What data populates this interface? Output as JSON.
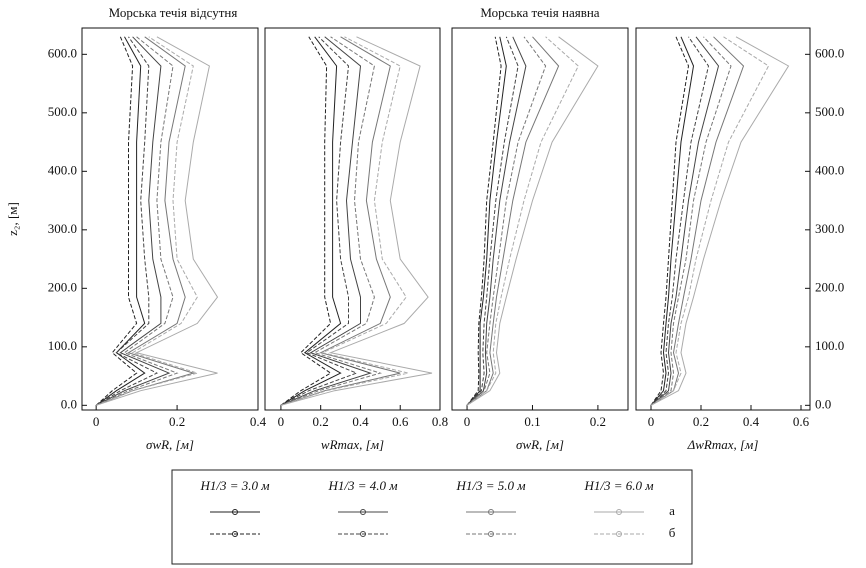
{
  "group_titles": [
    "Морська течія відсутня",
    "Морська течія наявна"
  ],
  "legend": {
    "columns": [
      "H1/3 = 3.0 м",
      "H1/3 = 4.0 м",
      "H1/3 = 5.0 м",
      "H1/3 = 6.0 м"
    ],
    "rows": [
      "а",
      "б"
    ]
  },
  "chart_data": [
    {
      "type": "line",
      "ylabel": "z₂, [м]",
      "xlabel": "σwR, [м]",
      "xlim": [
        -0.035,
        0.4
      ],
      "xticks": [
        0,
        0.2,
        0.4
      ],
      "ylim": [
        -8,
        645
      ],
      "yticks": [
        {
          "value": 0,
          "label": "0.0"
        },
        {
          "value": 100,
          "label": "100.0"
        },
        {
          "value": 200,
          "label": "200.0"
        },
        {
          "value": 300,
          "label": "300.0"
        },
        {
          "value": 400,
          "label": "400.0"
        },
        {
          "value": 500,
          "label": "500.0"
        },
        {
          "value": 600,
          "label": "600.0"
        }
      ],
      "y": [
        0,
        25,
        55,
        90,
        140,
        185,
        250,
        350,
        450,
        580,
        630
      ],
      "series": [
        {
          "color": "#222",
          "values": [
            0,
            0.05,
            0.12,
            0.05,
            0.12,
            0.1,
            0.1,
            0.1,
            0.1,
            0.11,
            0.07
          ]
        },
        {
          "color": "#444",
          "values": [
            0,
            0.07,
            0.18,
            0.06,
            0.16,
            0.16,
            0.14,
            0.13,
            0.14,
            0.16,
            0.09
          ]
        },
        {
          "color": "#777",
          "values": [
            0,
            0.09,
            0.24,
            0.08,
            0.2,
            0.22,
            0.19,
            0.17,
            0.18,
            0.22,
            0.12
          ]
        },
        {
          "color": "#aaa",
          "values": [
            0,
            0.11,
            0.3,
            0.1,
            0.25,
            0.3,
            0.24,
            0.22,
            0.24,
            0.28,
            0.15
          ]
        },
        {
          "color": "#222",
          "dash": true,
          "values": [
            0,
            0.04,
            0.1,
            0.04,
            0.1,
            0.08,
            0.08,
            0.08,
            0.08,
            0.09,
            0.06
          ]
        },
        {
          "color": "#444",
          "dash": true,
          "values": [
            0,
            0.06,
            0.15,
            0.05,
            0.13,
            0.13,
            0.12,
            0.11,
            0.12,
            0.13,
            0.08
          ]
        },
        {
          "color": "#777",
          "dash": true,
          "values": [
            0,
            0.08,
            0.2,
            0.07,
            0.17,
            0.19,
            0.16,
            0.15,
            0.16,
            0.19,
            0.1
          ]
        },
        {
          "color": "#aaa",
          "dash": true,
          "values": [
            0,
            0.09,
            0.25,
            0.09,
            0.21,
            0.25,
            0.2,
            0.19,
            0.2,
            0.24,
            0.13
          ]
        }
      ]
    },
    {
      "type": "line",
      "xlabel": "wRmax, [м]",
      "xlim": [
        -0.08,
        0.8
      ],
      "xticks": [
        0,
        0.2,
        0.4,
        0.6,
        0.8
      ],
      "ylim": [
        -8,
        645
      ],
      "y": [
        0,
        25,
        55,
        90,
        140,
        185,
        250,
        350,
        450,
        580,
        630
      ],
      "series": [
        {
          "color": "#222",
          "values": [
            0,
            0.12,
            0.3,
            0.12,
            0.3,
            0.26,
            0.26,
            0.26,
            0.26,
            0.28,
            0.17
          ]
        },
        {
          "color": "#444",
          "values": [
            0,
            0.17,
            0.45,
            0.15,
            0.4,
            0.4,
            0.35,
            0.33,
            0.36,
            0.4,
            0.22
          ]
        },
        {
          "color": "#777",
          "values": [
            0,
            0.22,
            0.6,
            0.2,
            0.5,
            0.55,
            0.48,
            0.43,
            0.46,
            0.55,
            0.3
          ]
        },
        {
          "color": "#aaa",
          "values": [
            0,
            0.27,
            0.76,
            0.25,
            0.62,
            0.74,
            0.6,
            0.55,
            0.6,
            0.7,
            0.38
          ]
        },
        {
          "color": "#222",
          "dash": true,
          "values": [
            0,
            0.1,
            0.25,
            0.1,
            0.25,
            0.22,
            0.22,
            0.22,
            0.22,
            0.23,
            0.14
          ]
        },
        {
          "color": "#444",
          "dash": true,
          "values": [
            0,
            0.14,
            0.38,
            0.13,
            0.34,
            0.34,
            0.3,
            0.28,
            0.3,
            0.34,
            0.19
          ]
        },
        {
          "color": "#777",
          "dash": true,
          "values": [
            0,
            0.19,
            0.5,
            0.17,
            0.43,
            0.47,
            0.4,
            0.37,
            0.39,
            0.47,
            0.25
          ]
        },
        {
          "color": "#aaa",
          "dash": true,
          "values": [
            0,
            0.23,
            0.64,
            0.21,
            0.53,
            0.63,
            0.51,
            0.47,
            0.51,
            0.6,
            0.32
          ]
        }
      ]
    },
    {
      "type": "line",
      "xlabel": "σwR, [м]",
      "xlim": [
        -0.023,
        0.246
      ],
      "xticks": [
        0,
        0.1,
        0.2
      ],
      "ylim": [
        -8,
        645
      ],
      "y": [
        0,
        25,
        55,
        90,
        140,
        185,
        250,
        350,
        450,
        580,
        630
      ],
      "series": [
        {
          "color": "#222",
          "values": [
            0,
            0.02,
            0.02,
            0.02,
            0.02,
            0.025,
            0.03,
            0.035,
            0.045,
            0.06,
            0.05
          ]
        },
        {
          "color": "#444",
          "values": [
            0,
            0.025,
            0.03,
            0.028,
            0.03,
            0.035,
            0.04,
            0.05,
            0.065,
            0.09,
            0.07
          ]
        },
        {
          "color": "#777",
          "values": [
            0,
            0.03,
            0.04,
            0.035,
            0.04,
            0.045,
            0.055,
            0.07,
            0.09,
            0.14,
            0.1
          ]
        },
        {
          "color": "#aaa",
          "values": [
            0,
            0.035,
            0.05,
            0.045,
            0.05,
            0.06,
            0.075,
            0.1,
            0.13,
            0.2,
            0.14
          ]
        },
        {
          "color": "#222",
          "dash": true,
          "values": [
            0,
            0.017,
            0.018,
            0.017,
            0.018,
            0.022,
            0.026,
            0.03,
            0.04,
            0.052,
            0.043
          ]
        },
        {
          "color": "#444",
          "dash": true,
          "values": [
            0,
            0.022,
            0.026,
            0.024,
            0.026,
            0.03,
            0.035,
            0.044,
            0.057,
            0.078,
            0.06
          ]
        },
        {
          "color": "#777",
          "dash": true,
          "values": [
            0,
            0.026,
            0.035,
            0.03,
            0.035,
            0.04,
            0.048,
            0.06,
            0.078,
            0.12,
            0.087
          ]
        },
        {
          "color": "#aaa",
          "dash": true,
          "values": [
            0,
            0.03,
            0.044,
            0.04,
            0.044,
            0.052,
            0.065,
            0.087,
            0.113,
            0.17,
            0.12
          ]
        }
      ]
    },
    {
      "type": "line",
      "xlabel": "ΔwRmax, [м]",
      "xlim": [
        -0.06,
        0.636
      ],
      "xticks": [
        0,
        0.2,
        0.4,
        0.6
      ],
      "ylim": [
        -8,
        645
      ],
      "yticks": [
        {
          "value": 0,
          "label": "0.0"
        },
        {
          "value": 100,
          "label": "100.0"
        },
        {
          "value": 200,
          "label": "200.0"
        },
        {
          "value": 300,
          "label": "300.0"
        },
        {
          "value": 400,
          "label": "400.0"
        },
        {
          "value": 500,
          "label": "500.0"
        },
        {
          "value": 600,
          "label": "600.0"
        }
      ],
      "y": [
        0,
        25,
        55,
        90,
        140,
        185,
        250,
        350,
        450,
        580,
        630
      ],
      "series": [
        {
          "color": "#222",
          "values": [
            0,
            0.05,
            0.06,
            0.05,
            0.06,
            0.07,
            0.08,
            0.1,
            0.12,
            0.17,
            0.12
          ]
        },
        {
          "color": "#444",
          "values": [
            0,
            0.07,
            0.08,
            0.07,
            0.08,
            0.1,
            0.12,
            0.15,
            0.19,
            0.27,
            0.18
          ]
        },
        {
          "color": "#777",
          "values": [
            0,
            0.09,
            0.11,
            0.09,
            0.11,
            0.13,
            0.16,
            0.2,
            0.26,
            0.37,
            0.25
          ]
        },
        {
          "color": "#aaa",
          "values": [
            0,
            0.11,
            0.14,
            0.12,
            0.14,
            0.17,
            0.21,
            0.28,
            0.36,
            0.55,
            0.34
          ]
        },
        {
          "color": "#222",
          "dash": true,
          "values": [
            0,
            0.04,
            0.05,
            0.04,
            0.05,
            0.06,
            0.07,
            0.085,
            0.1,
            0.15,
            0.1
          ]
        },
        {
          "color": "#444",
          "dash": true,
          "values": [
            0,
            0.06,
            0.07,
            0.06,
            0.07,
            0.085,
            0.1,
            0.13,
            0.16,
            0.23,
            0.15
          ]
        },
        {
          "color": "#777",
          "dash": true,
          "values": [
            0,
            0.08,
            0.09,
            0.08,
            0.09,
            0.11,
            0.14,
            0.17,
            0.22,
            0.32,
            0.21
          ]
        },
        {
          "color": "#aaa",
          "dash": true,
          "values": [
            0,
            0.09,
            0.12,
            0.1,
            0.12,
            0.15,
            0.18,
            0.24,
            0.31,
            0.47,
            0.29
          ]
        }
      ]
    }
  ]
}
